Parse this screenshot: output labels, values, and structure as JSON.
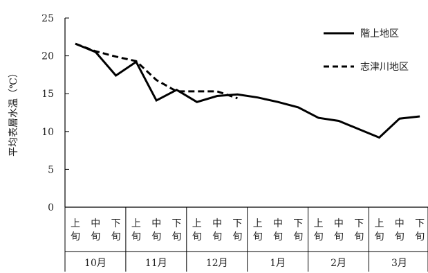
{
  "chart_data": {
    "type": "line",
    "ylabel": "平均表層水温（℃）",
    "xlabel": "",
    "ylim": [
      0,
      25
    ],
    "yticks": [
      0,
      5,
      10,
      15,
      20,
      25
    ],
    "grid": false,
    "legend_position": "top-right",
    "months": [
      "10月",
      "11月",
      "12月",
      "1月",
      "2月",
      "3月"
    ],
    "periods": [
      [
        "上",
        "旬"
      ],
      [
        "中",
        "旬"
      ],
      [
        "下",
        "旬"
      ]
    ],
    "categories": [
      "10月上旬",
      "10月中旬",
      "10月下旬",
      "11月上旬",
      "11月中旬",
      "11月下旬",
      "12月上旬",
      "12月中旬",
      "12月下旬",
      "1月上旬",
      "1月中旬",
      "1月下旬",
      "2月上旬",
      "2月中旬",
      "2月下旬",
      "3月上旬",
      "3月中旬",
      "3月下旬"
    ],
    "series": [
      {
        "name": "階上地区",
        "style": "solid",
        "color": "#000000",
        "values": [
          21.6,
          20.5,
          17.4,
          19.2,
          14.1,
          15.5,
          13.9,
          14.7,
          14.9,
          14.5,
          13.9,
          13.2,
          11.8,
          11.4,
          10.3,
          9.2,
          11.7,
          12.0
        ]
      },
      {
        "name": "志津川地区",
        "style": "dashed",
        "color": "#000000",
        "values": [
          21.6,
          20.6,
          19.9,
          19.3,
          16.8,
          15.3,
          15.3,
          15.3,
          14.4,
          null,
          null,
          null,
          null,
          null,
          null,
          null,
          null,
          null
        ]
      }
    ]
  }
}
